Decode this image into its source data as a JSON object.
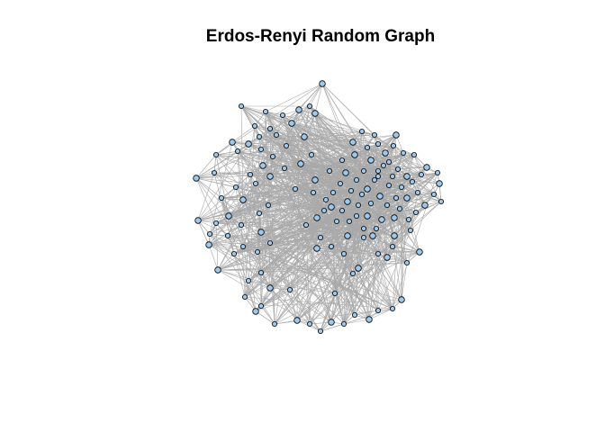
{
  "title": "Erdos-Renyi Random Graph",
  "graph": {
    "type": "network",
    "layout": "force-directed",
    "node_color": "#9dc9ee",
    "node_border_color": "#000000",
    "edge_color": "#a9a9a9",
    "node_labels": false
  }
}
